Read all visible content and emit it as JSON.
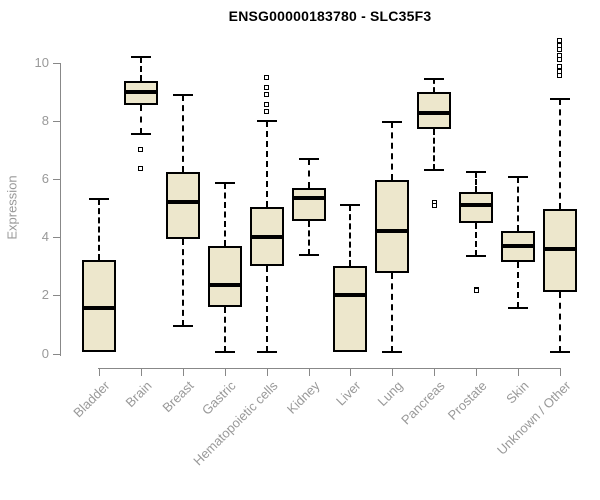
{
  "chart_data": {
    "type": "boxplot",
    "title": "ENSG00000183780 - SLC35F3",
    "xlabel": "",
    "ylabel": "Expression",
    "ylim": [
      0,
      10
    ],
    "yticks": [
      0,
      2,
      4,
      6,
      8,
      10
    ],
    "grid": false,
    "legend": false,
    "categories": [
      "Bladder",
      "Brain",
      "Breast",
      "Gastric",
      "Hematopoietic cells",
      "Kidney",
      "Liver",
      "Lung",
      "Pancreas",
      "Prostate",
      "Skin",
      "Unknown / Other"
    ],
    "boxes": [
      {
        "category": "Bladder",
        "whisker_low": 0.05,
        "q1": 0.05,
        "median": 1.55,
        "q3": 3.2,
        "whisker_high": 5.3,
        "outliers": []
      },
      {
        "category": "Brain",
        "whisker_low": 7.55,
        "q1": 8.55,
        "median": 9.0,
        "q3": 9.35,
        "whisker_high": 10.2,
        "outliers": [
          7.0,
          6.35
        ]
      },
      {
        "category": "Breast",
        "whisker_low": 0.95,
        "q1": 3.95,
        "median": 5.2,
        "q3": 6.25,
        "whisker_high": 8.9,
        "outliers": []
      },
      {
        "category": "Gastric",
        "whisker_low": 0.05,
        "q1": 1.6,
        "median": 2.35,
        "q3": 3.7,
        "whisker_high": 5.85,
        "outliers": []
      },
      {
        "category": "Hematopoietic cells",
        "whisker_low": 0.05,
        "q1": 3.0,
        "median": 4.0,
        "q3": 5.05,
        "whisker_high": 8.0,
        "outliers": [
          8.3,
          8.55,
          8.9,
          9.15,
          9.5
        ]
      },
      {
        "category": "Kidney",
        "whisker_low": 3.4,
        "q1": 4.55,
        "median": 5.35,
        "q3": 5.7,
        "whisker_high": 6.7,
        "outliers": []
      },
      {
        "category": "Liver",
        "whisker_low": 0.05,
        "q1": 0.05,
        "median": 2.0,
        "q3": 3.0,
        "whisker_high": 5.1,
        "outliers": []
      },
      {
        "category": "Lung",
        "whisker_low": 0.05,
        "q1": 2.75,
        "median": 4.2,
        "q3": 5.95,
        "whisker_high": 7.95,
        "outliers": []
      },
      {
        "category": "Pancreas",
        "whisker_low": 6.3,
        "q1": 7.7,
        "median": 8.25,
        "q3": 9.0,
        "whisker_high": 9.45,
        "outliers": [
          5.2,
          5.1
        ]
      },
      {
        "category": "Prostate",
        "whisker_low": 3.35,
        "q1": 4.5,
        "median": 5.1,
        "q3": 5.55,
        "whisker_high": 6.25,
        "outliers": [
          2.2,
          2.15
        ]
      },
      {
        "category": "Skin",
        "whisker_low": 1.55,
        "q1": 3.15,
        "median": 3.7,
        "q3": 4.2,
        "whisker_high": 6.05,
        "outliers": []
      },
      {
        "category": "Unknown / Other",
        "whisker_low": 0.05,
        "q1": 2.1,
        "median": 3.6,
        "q3": 4.95,
        "whisker_high": 8.75,
        "outliers": [
          9.55,
          9.7,
          9.85,
          10.1,
          10.25,
          10.45,
          10.6,
          10.75
        ]
      }
    ],
    "colors": {
      "box_fill": "#EDE7CC",
      "box_border": "#000000",
      "median": "#000000",
      "whisker": "#000000",
      "axis": "#888888",
      "tick_label": "#999999",
      "title": "#000000",
      "background": "#ffffff"
    }
  }
}
